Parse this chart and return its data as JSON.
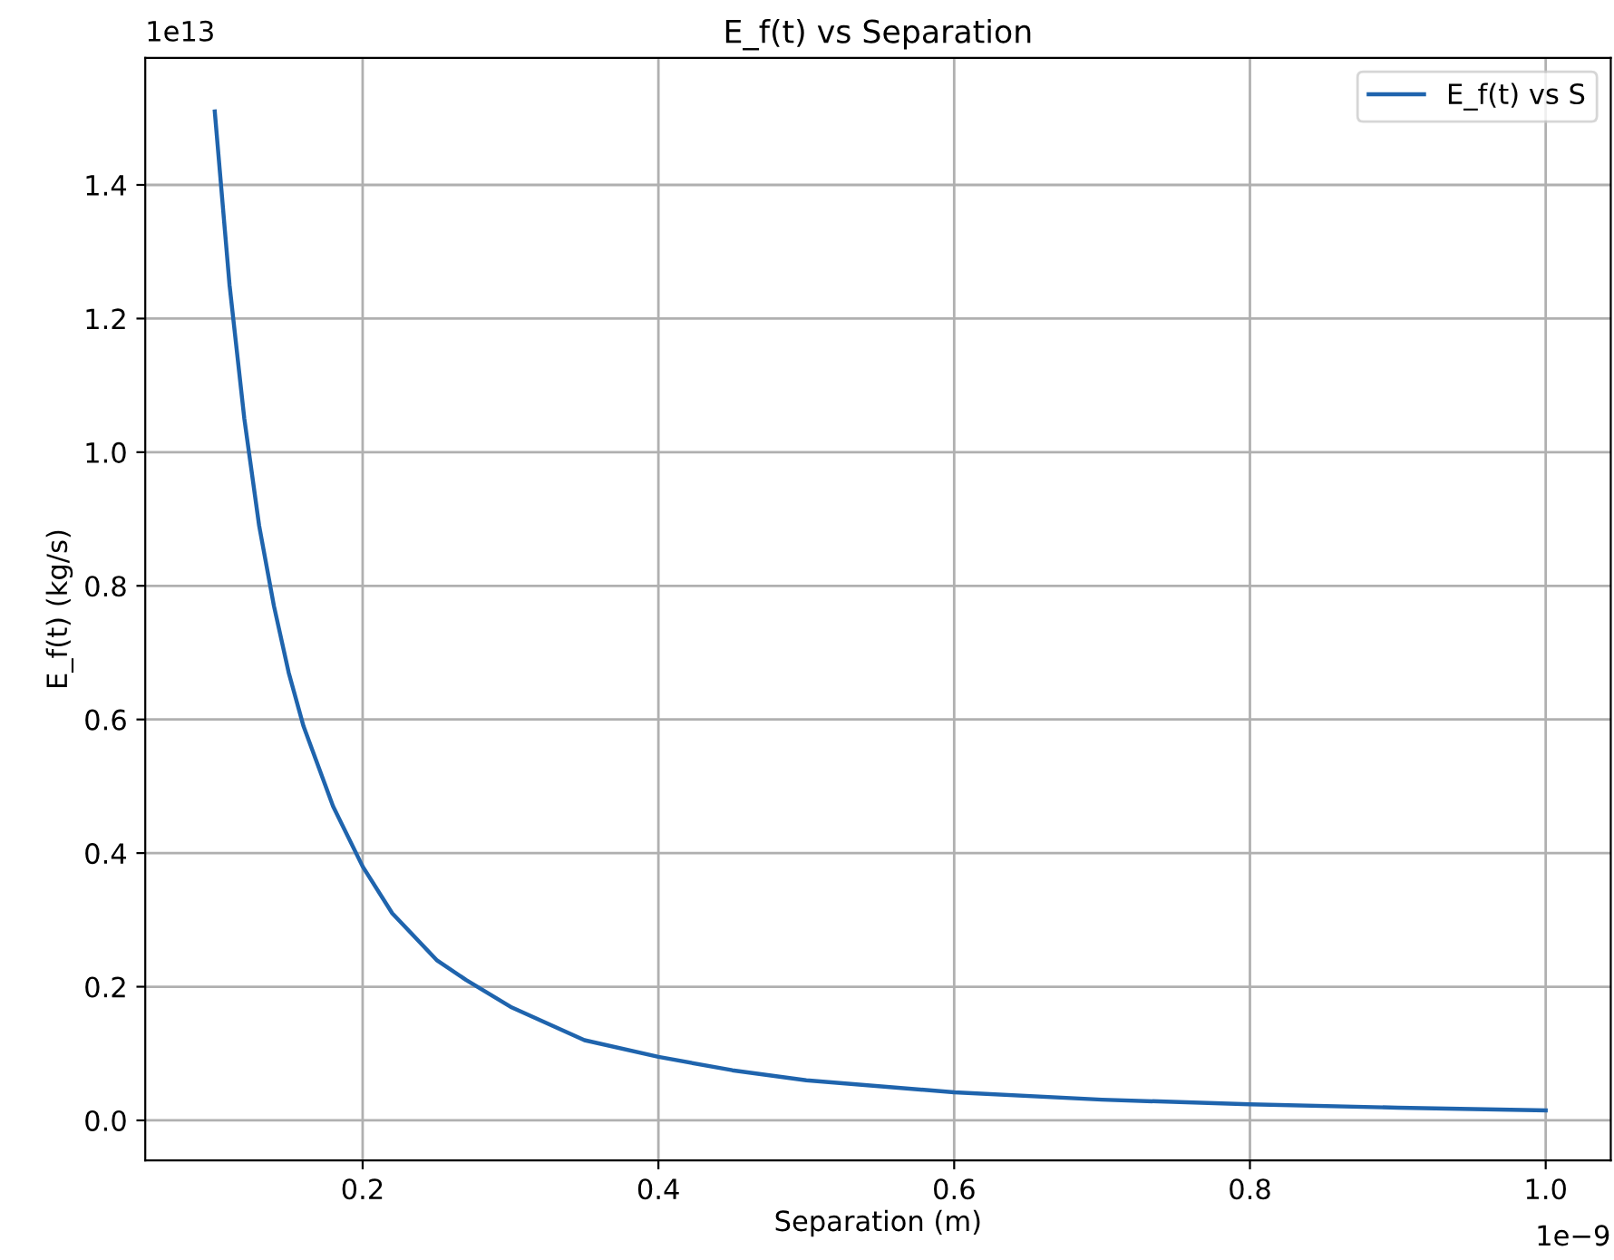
{
  "chart_data": {
    "type": "line",
    "title": "E_f(t) vs Separation",
    "xlabel": "Separation (m)",
    "ylabel": "E_f(t) (kg/s)",
    "annotations": [
      "1e−9",
      "1e13"
    ],
    "x": [
      0.1,
      0.11,
      0.12,
      0.13,
      0.14,
      0.15,
      0.16,
      0.18,
      0.2,
      0.22,
      0.25,
      0.27,
      0.3,
      0.35,
      0.4,
      0.45,
      0.5,
      0.6,
      0.7,
      0.8,
      0.9,
      1.0
    ],
    "series": [
      {
        "name": "E_f(t) vs S",
        "color": "#1f64ad",
        "values": [
          1.51,
          1.25,
          1.05,
          0.89,
          0.77,
          0.67,
          0.59,
          0.47,
          0.38,
          0.31,
          0.24,
          0.21,
          0.17,
          0.12,
          0.095,
          0.075,
          0.06,
          0.042,
          0.031,
          0.024,
          0.019,
          0.015
        ]
      }
    ],
    "xlim": [
      0.053,
      1.044
    ],
    "ylim": [
      -0.06,
      1.59
    ],
    "xticks": [
      0.2,
      0.4,
      0.6,
      0.8,
      {
        "value": 1,
        "label": "1.0"
      }
    ],
    "yticks": [
      {
        "value": 0,
        "label": "0.0"
      },
      0.2,
      0.4,
      0.6,
      0.8,
      {
        "value": 1,
        "label": "1.0"
      },
      1.2,
      1.4
    ],
    "grid": true,
    "legend": "top right",
    "marker": "none",
    "line_style": "solid"
  }
}
